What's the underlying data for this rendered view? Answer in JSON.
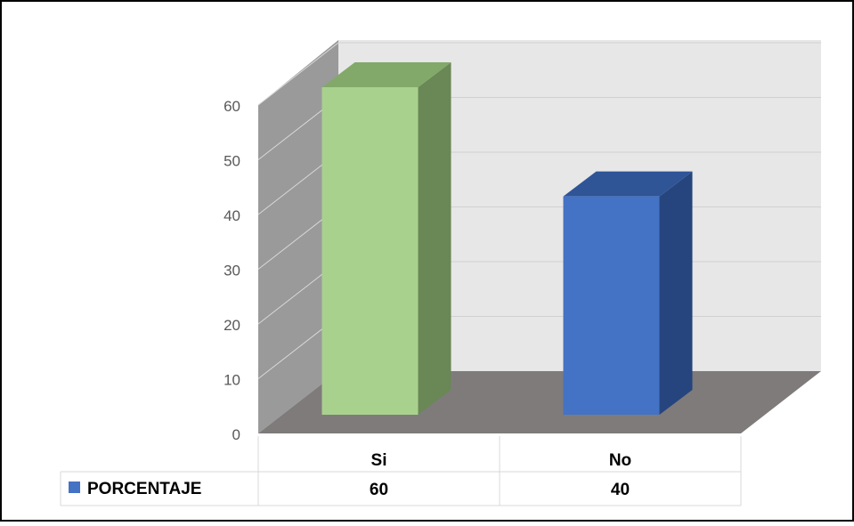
{
  "chart_data": {
    "type": "bar",
    "categories": [
      "Si",
      "No"
    ],
    "series": [
      {
        "name": "PORCENTAJE",
        "values": [
          60,
          40
        ],
        "colors": [
          "#A9D18E",
          "#4472C4"
        ]
      }
    ],
    "ylim": [
      0,
      60
    ],
    "yticks": [
      0,
      10,
      20,
      30,
      40,
      50,
      60
    ],
    "grid": true,
    "three_d": true,
    "data_table": true,
    "legend_in_table": true
  },
  "colors": {
    "wall_back": "#E7E7E7",
    "wall_side": "#9A9A9A",
    "floor": "#7F7B7B",
    "grid": "#D0D0D0",
    "bar_si_side": "#6A8756",
    "bar_si_top": "#82A96A",
    "bar_no_side": "#26457E",
    "bar_no_top": "#2F5597"
  }
}
